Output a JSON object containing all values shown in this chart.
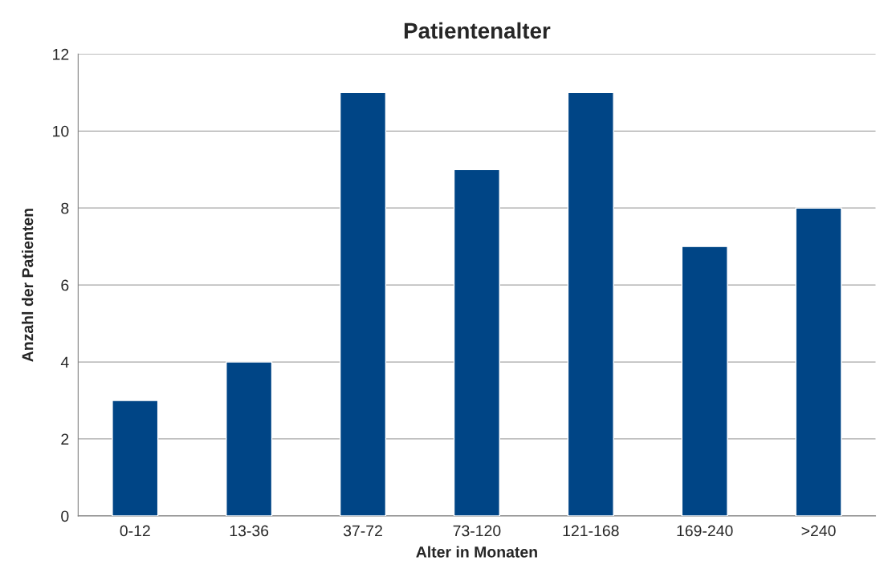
{
  "chart_data": {
    "type": "bar",
    "title": "Patientenalter",
    "xlabel": "Alter in Monaten",
    "ylabel": "Anzahl der Patienten",
    "categories": [
      "0-12",
      "13-36",
      "37-72",
      "73-120",
      "121-168",
      "169-240",
      ">240"
    ],
    "values": [
      3,
      4,
      11,
      9,
      11,
      7,
      8
    ],
    "color": "#004586",
    "ylim": [
      0,
      12
    ],
    "yticks": [
      0,
      2,
      4,
      6,
      8,
      10,
      12
    ],
    "grid": "y"
  }
}
